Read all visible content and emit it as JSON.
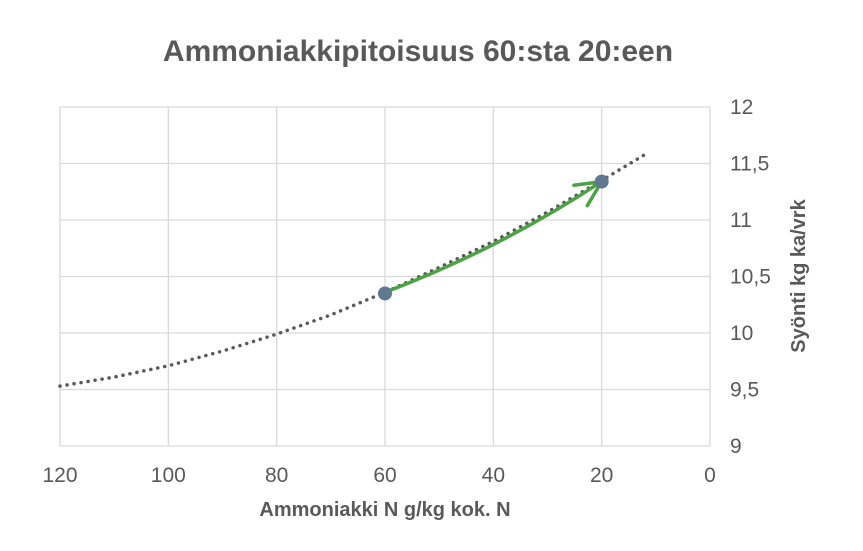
{
  "chart_data": {
    "type": "scatter",
    "title": "Ammoniakkipitoisuus 60:sta 20:een",
    "xlabel": "Ammoniakki N g/kg kok. N",
    "ylabel": "Syönti kg ka/vrk",
    "xlim": [
      0,
      120
    ],
    "ylim": [
      9,
      12
    ],
    "x_reversed": true,
    "y_axis_position": "right",
    "grid": true,
    "x_ticks": [
      "120",
      "100",
      "80",
      "60",
      "40",
      "20",
      "0"
    ],
    "y_ticks": [
      "12",
      "11,5",
      "11",
      "10,5",
      "10",
      "9,5",
      "9"
    ],
    "points": [
      {
        "x": 60,
        "y": 10.35
      },
      {
        "x": 20,
        "y": 11.34
      }
    ],
    "trendline": {
      "style": "dotted",
      "x": [
        120,
        110,
        100,
        90,
        80,
        70,
        60,
        50,
        40,
        30,
        20,
        12
      ],
      "y": [
        9.53,
        9.61,
        9.71,
        9.84,
        9.99,
        10.16,
        10.36,
        10.58,
        10.81,
        11.07,
        11.35,
        11.58
      ]
    },
    "arrow": {
      "from": {
        "x": 60,
        "y": 10.36
      },
      "to": {
        "x": 20,
        "y": 11.34
      }
    },
    "colors": {
      "points": "#607890",
      "trendline": "#595959",
      "arrow": "#4ea246",
      "grid": "#d9d9d9",
      "text": "#595959"
    }
  }
}
